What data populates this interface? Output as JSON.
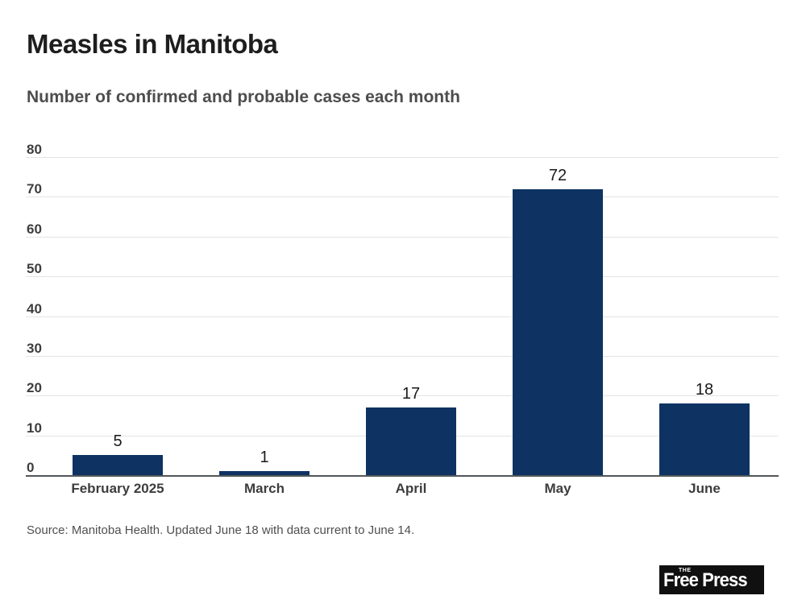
{
  "header": {
    "title": "Measles in Manitoba",
    "subtitle": "Number of confirmed and probable cases each month"
  },
  "chart_data": {
    "type": "bar",
    "categories": [
      "February 2025",
      "March",
      "April",
      "May",
      "June"
    ],
    "values": [
      5,
      1,
      17,
      72,
      18
    ],
    "title": "Measles in Manitoba",
    "subtitle": "Number of confirmed and probable cases each month",
    "xlabel": "",
    "ylabel": "",
    "ylim": [
      0,
      80
    ],
    "yticks": [
      0,
      10,
      20,
      30,
      40,
      50,
      60,
      70,
      80
    ],
    "bar_color": "#0e3363",
    "grid": "horizontal-only",
    "value_labels_shown": true,
    "legend": "none"
  },
  "source_note": "Source: Manitoba Health. Updated June 18 with data current to June 14.",
  "logo": {
    "the": "THE",
    "name": "Free Press",
    "bg_color": "#101010",
    "text_color": "#ffffff"
  }
}
